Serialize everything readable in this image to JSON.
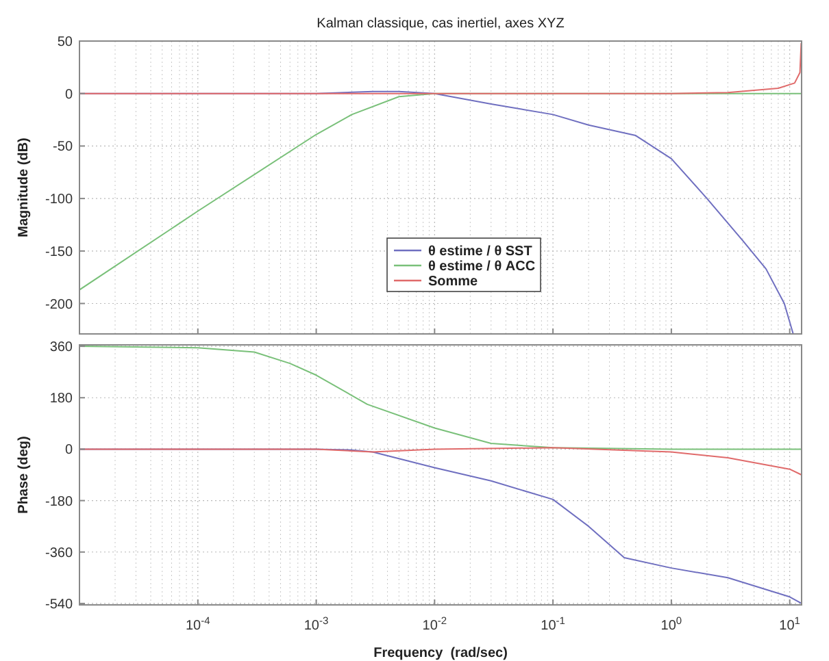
{
  "chart_data": [
    {
      "type": "line",
      "title": "Kalman classique, cas inertiel, axes XYZ",
      "ylabel": "Magnitude (dB)",
      "log": "x",
      "grid": true,
      "legend": "center",
      "tick_labels": "y",
      "xlim": [
        1e-05,
        12.6
      ],
      "ylim": [
        -229,
        50
      ],
      "xticks": [
        {
          "value": 0.0001,
          "label": null
        },
        {
          "value": 0.001,
          "label": null
        },
        {
          "value": 0.01,
          "label": null
        },
        {
          "value": 0.1,
          "label": null
        },
        {
          "value": 1,
          "label": null
        },
        {
          "value": 10,
          "label": null
        }
      ],
      "yticks": [
        50,
        0,
        -50,
        -100,
        -150,
        -200
      ],
      "series": [
        {
          "name": "θ estime / θ SST",
          "color": "#6f6fc0",
          "x": [
            1e-05,
            0.0001,
            0.001,
            0.003,
            0.005,
            0.01,
            0.03,
            0.1,
            0.2,
            0.5,
            1,
            2,
            4,
            6.3,
            9,
            10.7
          ],
          "values": [
            0,
            0,
            0,
            2,
            2,
            0,
            -10,
            -20,
            -30,
            -40,
            -62,
            -100,
            -140,
            -167,
            -200,
            -229
          ]
        },
        {
          "name": "θ estime / θ ACC",
          "color": "#79c079",
          "x": [
            1e-05,
            0.0001,
            0.001,
            0.002,
            0.005,
            0.01,
            0.1,
            1,
            12.6
          ],
          "values": [
            -187,
            -112,
            -39,
            -20,
            -3,
            0,
            0,
            0,
            0
          ]
        },
        {
          "name": "Somme",
          "color": "#e06a6a",
          "x": [
            1e-05,
            0.001,
            0.01,
            0.1,
            1,
            3,
            8,
            11,
            12.2,
            12.5
          ],
          "values": [
            0,
            0,
            0,
            0,
            0,
            1,
            5,
            10,
            20,
            48
          ]
        }
      ]
    },
    {
      "type": "line",
      "xlabel": "Frequency  (rad/sec)",
      "ylabel": "Phase (deg)",
      "log": "x",
      "grid": true,
      "xlim": [
        1e-05,
        12.6
      ],
      "ylim": [
        -545,
        365
      ],
      "xticks": [
        {
          "value": 0.0001,
          "label": "10$^{-4}$"
        },
        {
          "value": 0.001,
          "label": "10$^{-3}$"
        },
        {
          "value": 0.01,
          "label": "10$^{-2}$"
        },
        {
          "value": 0.1,
          "label": "10$^{-1}$"
        },
        {
          "value": 1,
          "label": "10$^{0}$"
        },
        {
          "value": 10,
          "label": "10$^{1}$"
        }
      ],
      "yticks": [
        360,
        180,
        0,
        -180,
        -360,
        -540
      ],
      "series": [
        {
          "color": "#6f6fc0",
          "x": [
            1e-05,
            0.001,
            0.002,
            0.003,
            0.01,
            0.03,
            0.1,
            0.2,
            0.4,
            1,
            3,
            10,
            12.6
          ],
          "values": [
            0,
            0,
            -3,
            -10,
            -65,
            -111,
            -176,
            -270,
            -380,
            -416,
            -450,
            -517,
            -540
          ]
        },
        {
          "color": "#79c079",
          "x": [
            1e-05,
            0.0001,
            0.0003,
            0.0006,
            0.001,
            0.0027,
            0.01,
            0.03,
            0.1,
            1,
            12.6
          ],
          "values": [
            360,
            355,
            340,
            300,
            259,
            157,
            74,
            20,
            5,
            0,
            0
          ]
        },
        {
          "color": "#e06a6a",
          "x": [
            1e-05,
            0.001,
            0.003,
            0.01,
            0.1,
            1,
            3,
            10,
            12.6
          ],
          "values": [
            0,
            0,
            -10,
            0,
            5,
            -10,
            -30,
            -70,
            -90
          ]
        }
      ]
    }
  ]
}
